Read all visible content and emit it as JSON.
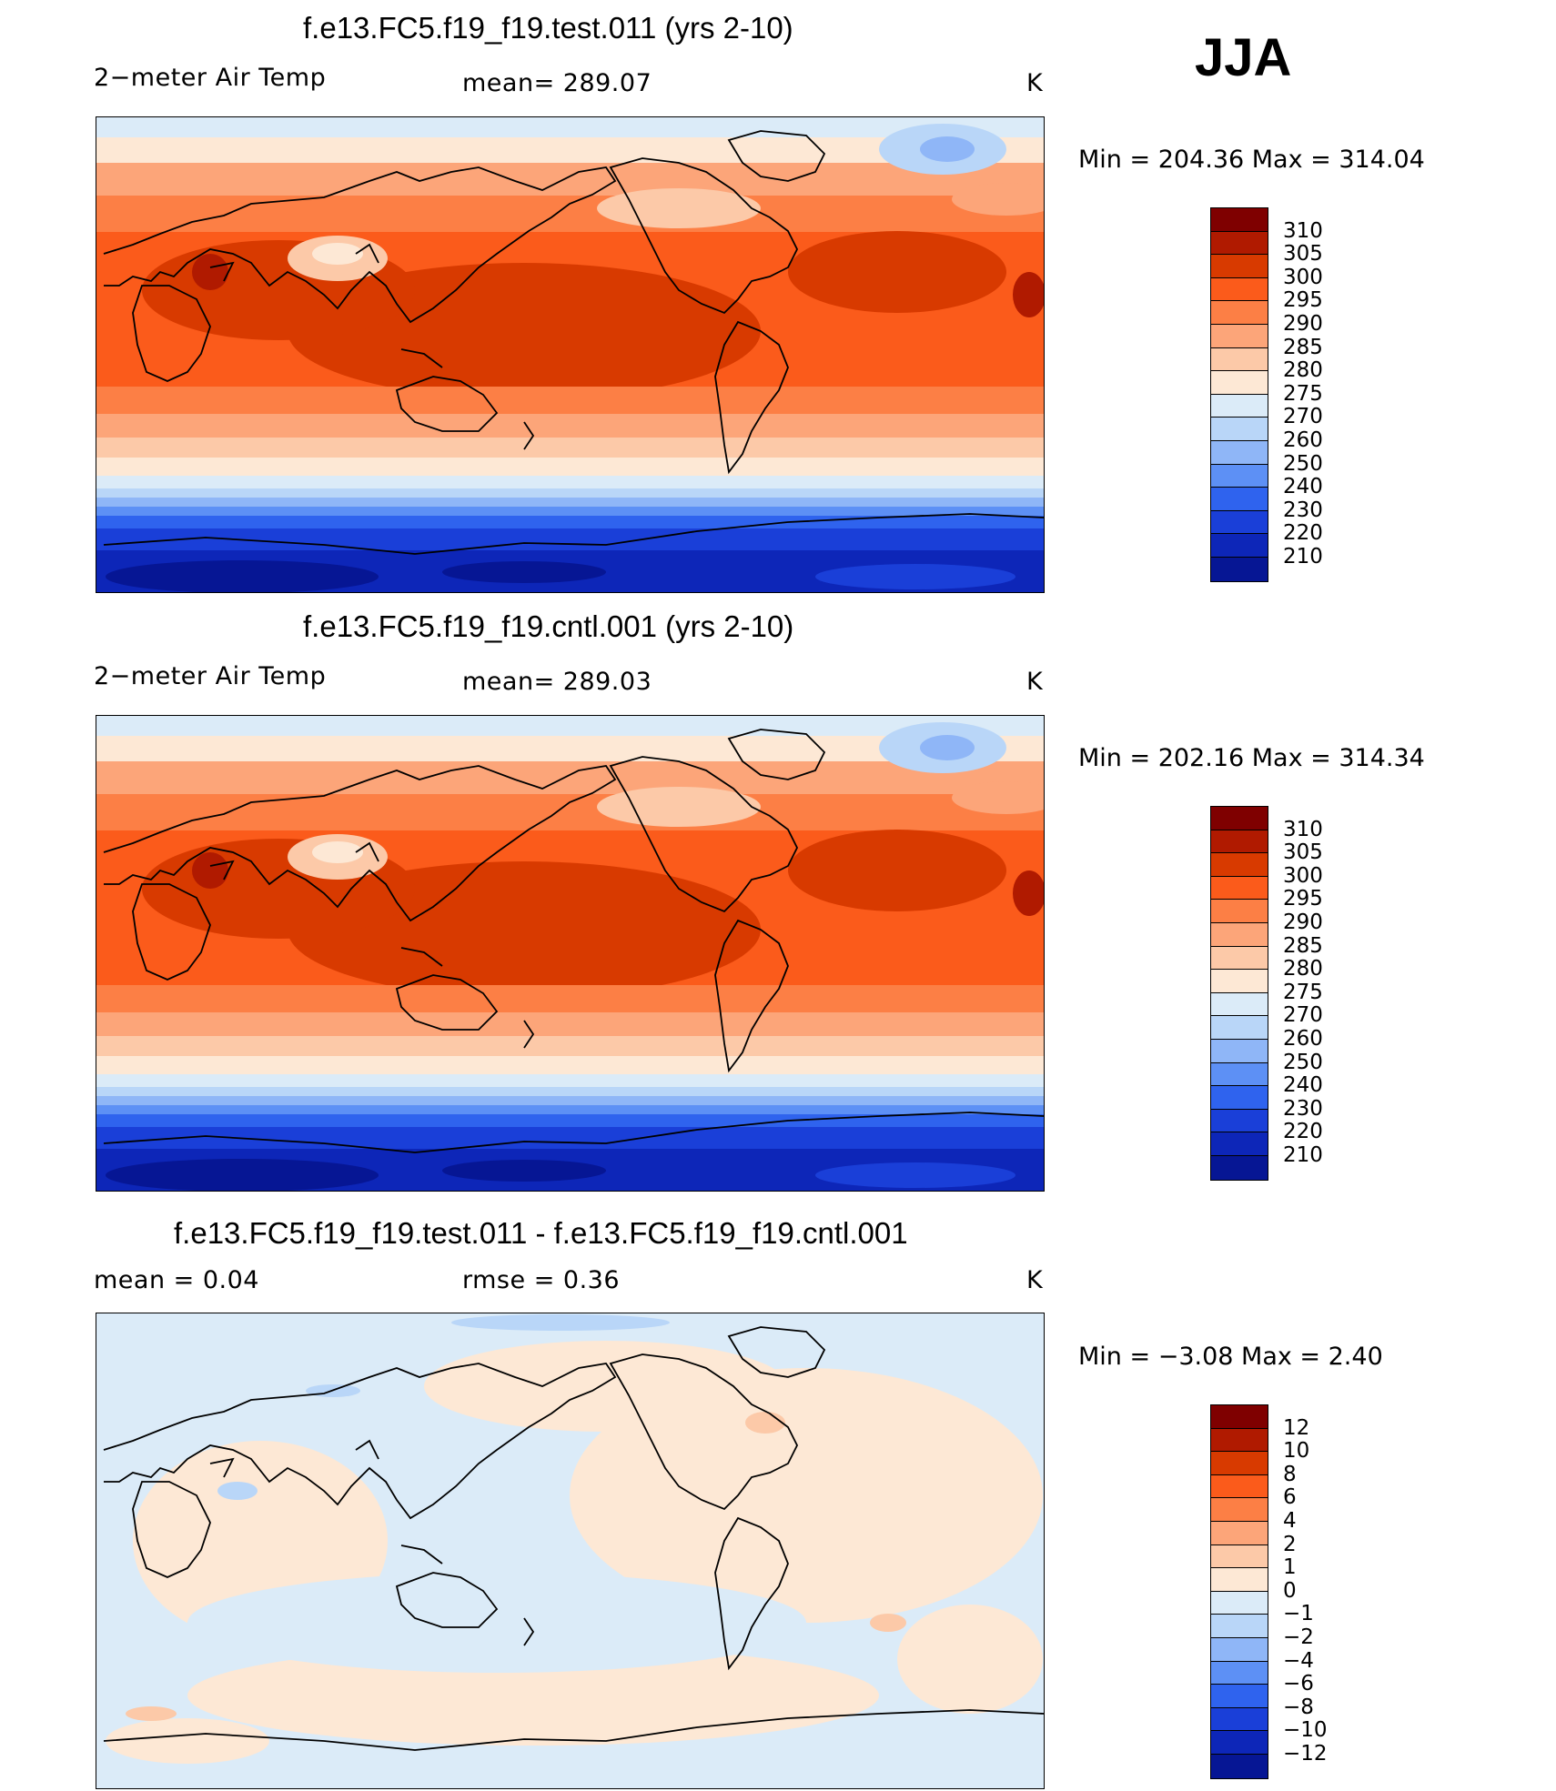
{
  "season": "JJA",
  "palettes": {
    "abs": [
      "#7f0000",
      "#b01a00",
      "#d83a00",
      "#fb5b1b",
      "#fc7f45",
      "#fca579",
      "#fcc9a8",
      "#fde8d5",
      "#dbebf8",
      "#b9d6f8",
      "#8fb6f7",
      "#5d90f5",
      "#2f63ee",
      "#1a3fd8",
      "#0d26b8",
      "#061694"
    ],
    "diff": [
      "#7f0000",
      "#b01a00",
      "#d83a00",
      "#fb5b1b",
      "#fc7f45",
      "#fca579",
      "#fcc9a8",
      "#fde8d5",
      "#dbebf8",
      "#b9d6f8",
      "#8fb6f7",
      "#5d90f5",
      "#2f63ee",
      "#1a3fd8",
      "#0d26b8",
      "#061694"
    ]
  },
  "panels": [
    {
      "title": "f.e13.FC5.f19_f19.test.011 (yrs 2-10)",
      "variable": "2−meter Air Temp",
      "stat": "mean=  289.07",
      "units": "K",
      "minmax": "Min  =  204.36  Max  =  314.04",
      "ticks": [
        "310",
        "305",
        "300",
        "295",
        "290",
        "285",
        "280",
        "275",
        "270",
        "260",
        "250",
        "240",
        "230",
        "220",
        "210"
      ]
    },
    {
      "title": "f.e13.FC5.f19_f19.cntl.001 (yrs 2-10)",
      "variable": "2−meter Air Temp",
      "stat": "mean=  289.03",
      "units": "K",
      "minmax": "Min  =  202.16  Max  =  314.34",
      "ticks": [
        "310",
        "305",
        "300",
        "295",
        "290",
        "285",
        "280",
        "275",
        "270",
        "260",
        "250",
        "240",
        "230",
        "220",
        "210"
      ]
    },
    {
      "title": "f.e13.FC5.f19_f19.test.011 - f.e13.FC5.f19_f19.cntl.001",
      "variable": "mean  =      0.04",
      "stat": "rmse  =      0.36",
      "units": "K",
      "minmax": "Min  =    −3.08  Max  =      2.40",
      "ticks": [
        "12",
        "10",
        "8",
        "6",
        "4",
        "2",
        "1",
        "0",
        "−1",
        "−2",
        "−4",
        "−6",
        "−8",
        "−10",
        "−12"
      ]
    }
  ]
}
